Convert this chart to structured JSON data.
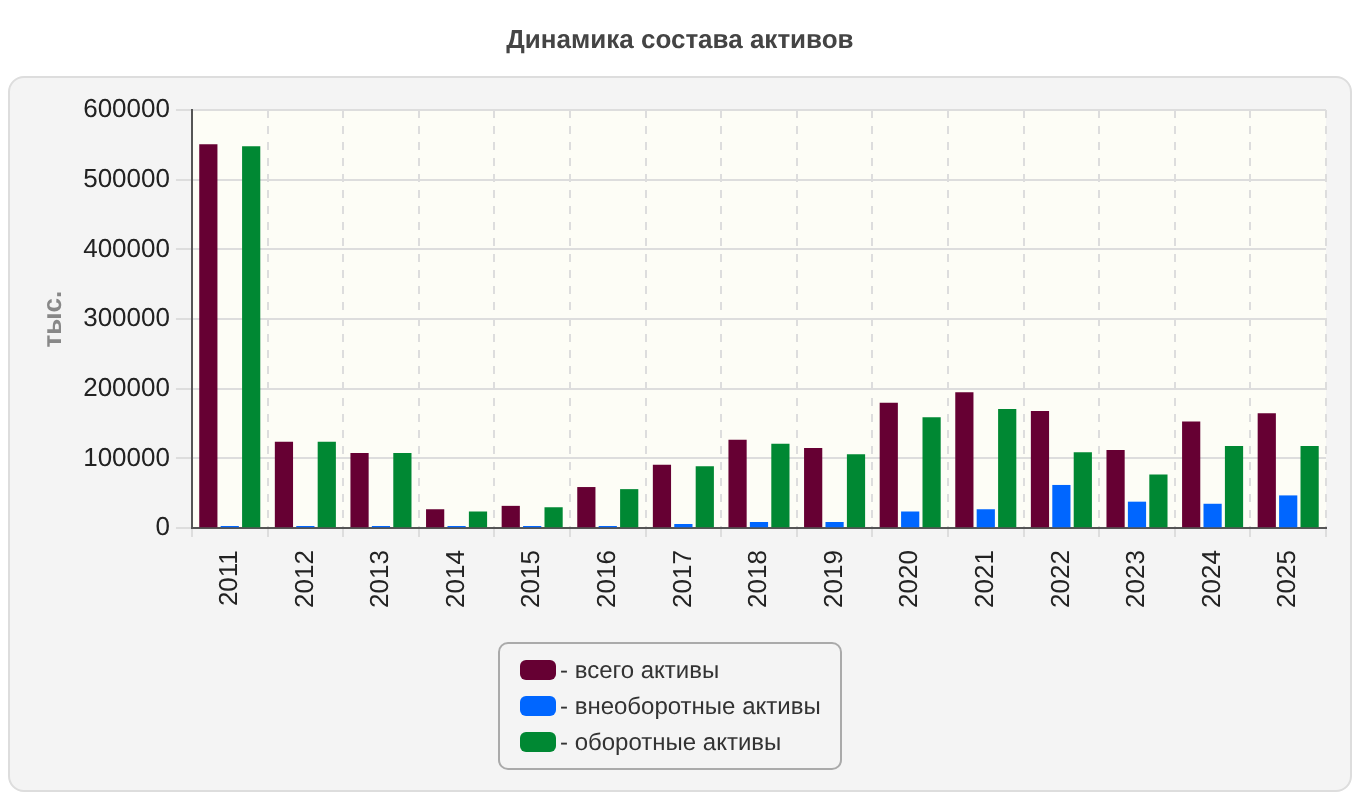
{
  "chart_data": {
    "type": "bar",
    "title": "Динамика состава активов",
    "ylabel": "тыс.",
    "categories": [
      "2011",
      "2012",
      "2013",
      "2014",
      "2015",
      "2016",
      "2017",
      "2018",
      "2019",
      "2020",
      "2021",
      "2022",
      "2023",
      "2024",
      "2025"
    ],
    "series": [
      {
        "name": "- всего активы",
        "color": "#660033",
        "values": [
          551000,
          124000,
          108000,
          27000,
          32000,
          59000,
          91000,
          127000,
          115000,
          180000,
          195000,
          168000,
          112000,
          153000,
          165000
        ]
      },
      {
        "name": "- внеоборотные активы",
        "color": "#0066ff",
        "values": [
          3000,
          3000,
          3000,
          3000,
          3000,
          3000,
          6000,
          9000,
          9000,
          24000,
          27000,
          62000,
          38000,
          35000,
          47000
        ]
      },
      {
        "name": "- оборотные активы",
        "color": "#008833",
        "values": [
          548000,
          124000,
          108000,
          24000,
          30000,
          56000,
          89000,
          121000,
          106000,
          159000,
          171000,
          109000,
          77000,
          118000,
          118000
        ]
      }
    ],
    "ylim": [
      0,
      600000
    ],
    "yticks": [
      0,
      100000,
      200000,
      300000,
      400000,
      500000,
      600000
    ],
    "grid": true,
    "legend": "bottom"
  }
}
